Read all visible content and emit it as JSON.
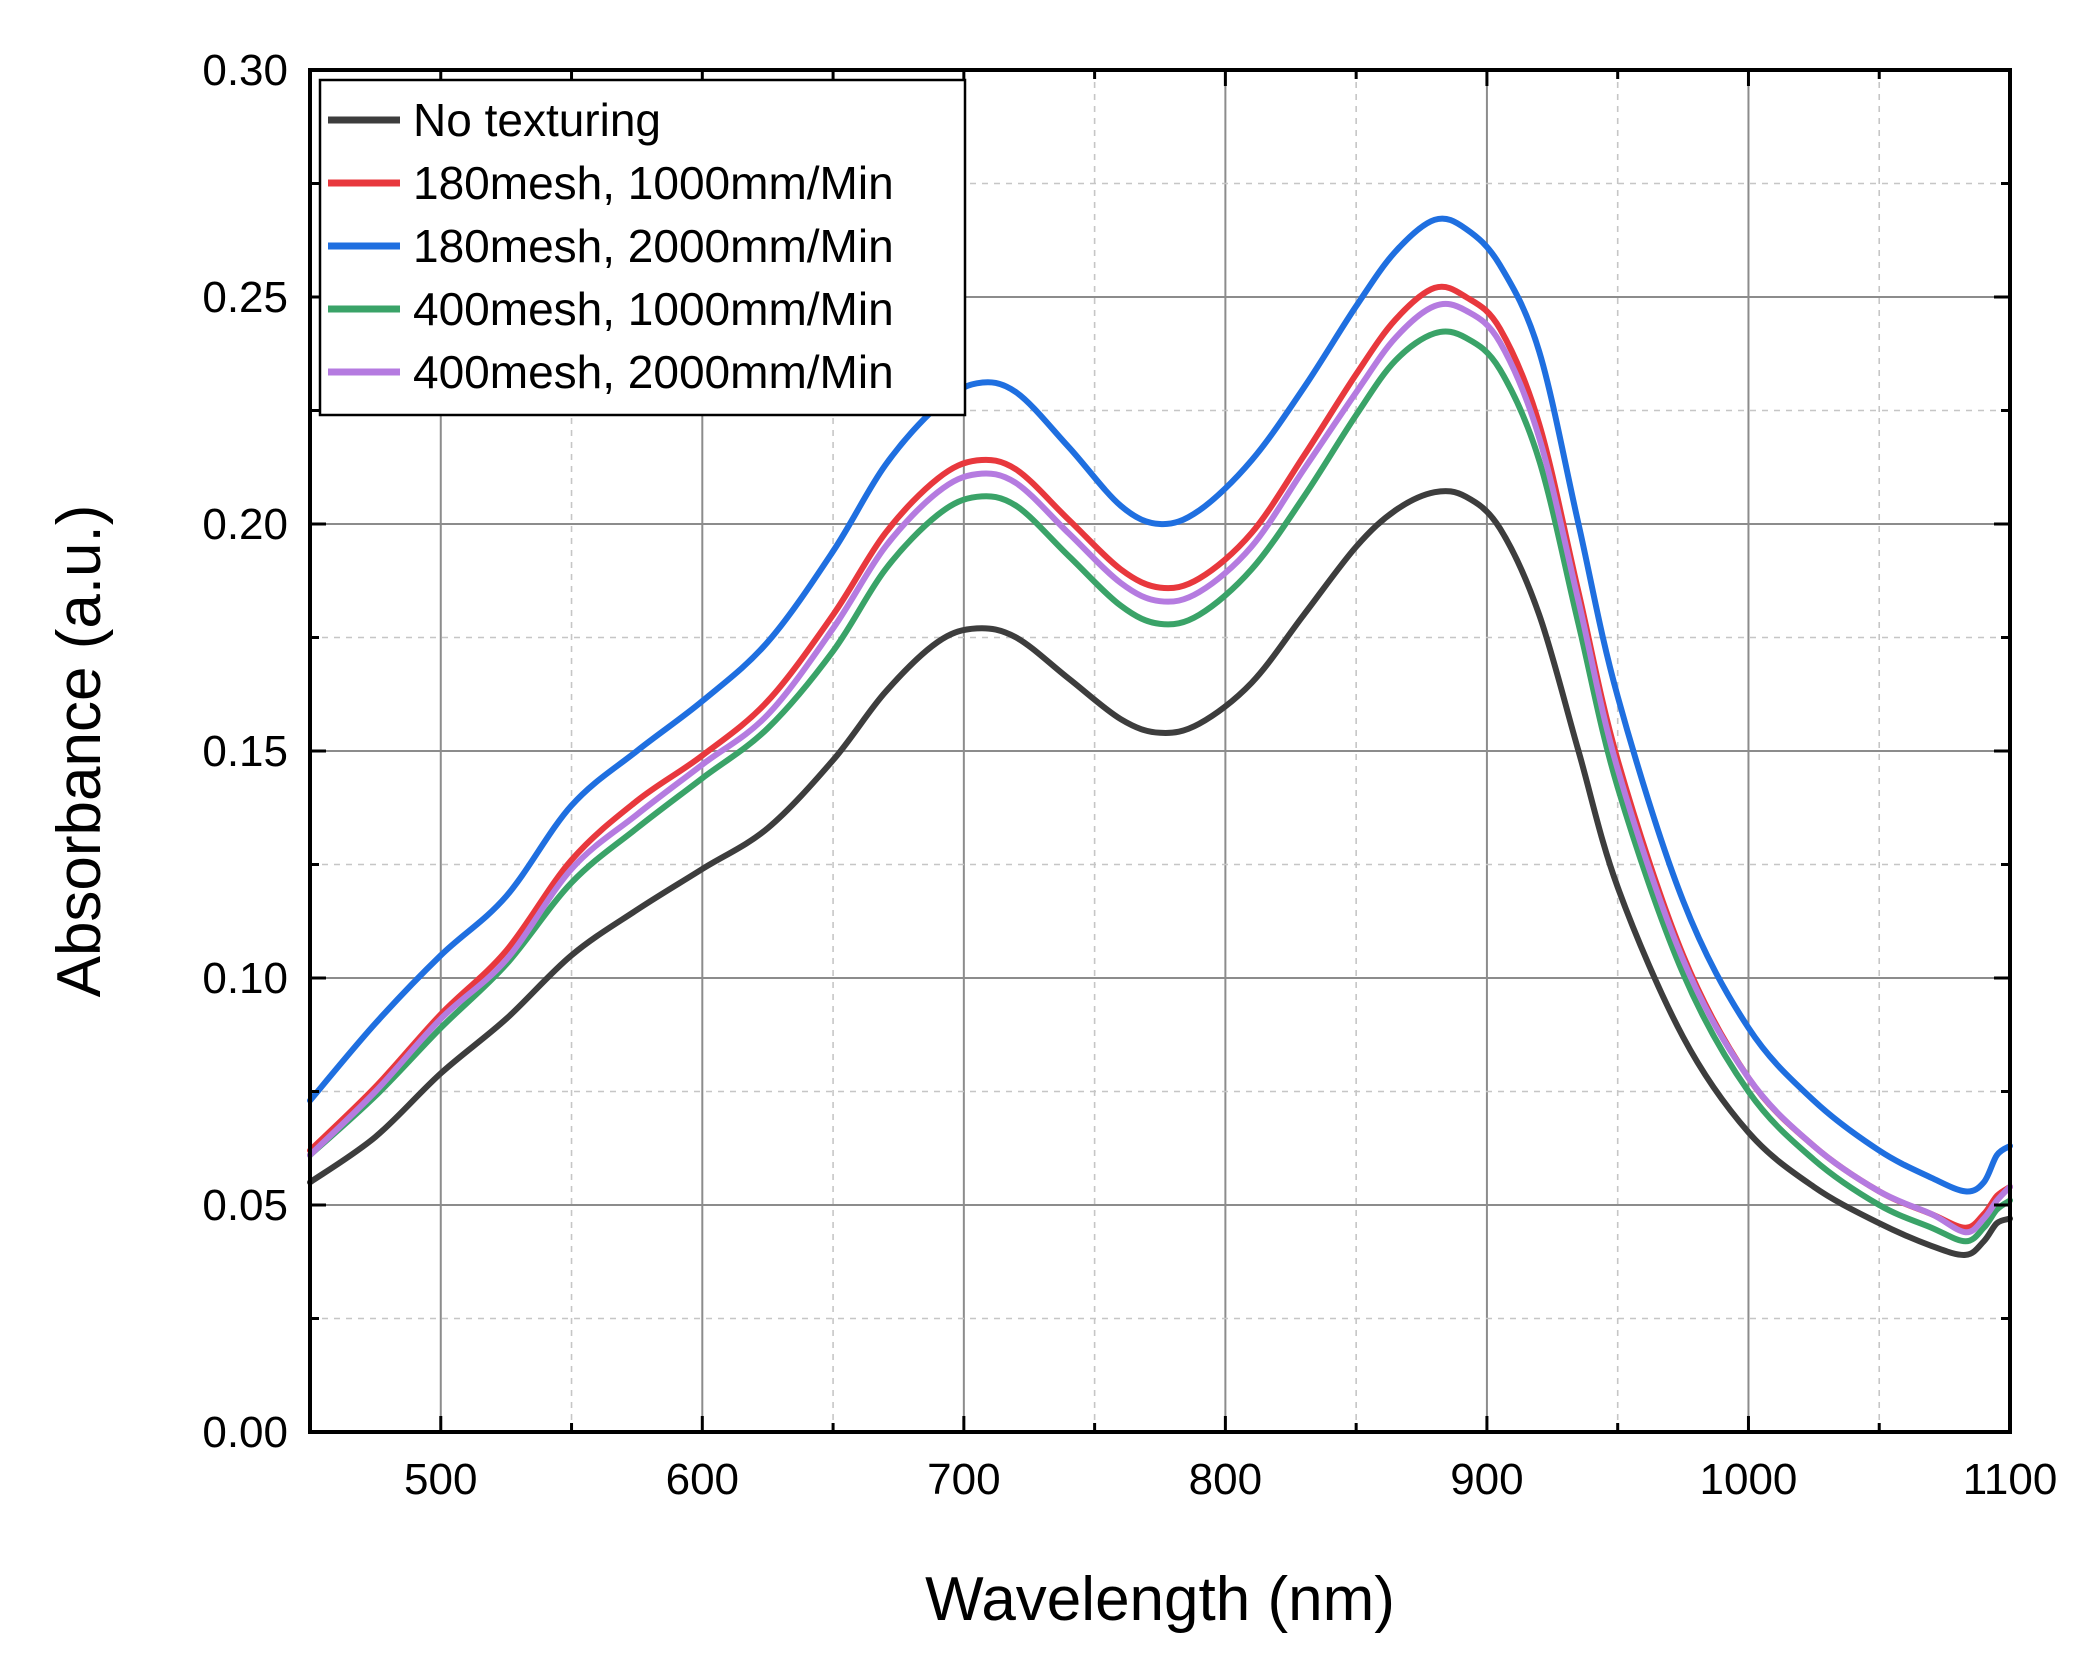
{
  "chart_data": {
    "type": "line",
    "title": "",
    "xlabel": "Wavelength (nm)",
    "ylabel": "Absorbance (a.u.)",
    "xlim": [
      450,
      1100
    ],
    "ylim": [
      0.0,
      0.3
    ],
    "x_ticks": [
      500,
      600,
      700,
      800,
      900,
      1000,
      1100
    ],
    "x_tick_labels": [
      "500",
      "600",
      "700",
      "800",
      "900",
      "1000",
      "1100"
    ],
    "y_ticks": [
      0.0,
      0.05,
      0.1,
      0.15,
      0.2,
      0.25,
      0.3
    ],
    "y_tick_labels": [
      "0.00",
      "0.05",
      "0.10",
      "0.15",
      "0.20",
      "0.25",
      "0.30"
    ],
    "grid": true,
    "legend_position": "top-left",
    "series": [
      {
        "name": "No texturing",
        "color": "#3d3d3d",
        "points": [
          [
            450,
            0.055
          ],
          [
            475,
            0.065
          ],
          [
            500,
            0.079
          ],
          [
            525,
            0.091
          ],
          [
            550,
            0.105
          ],
          [
            575,
            0.115
          ],
          [
            600,
            0.124
          ],
          [
            625,
            0.133
          ],
          [
            650,
            0.148
          ],
          [
            670,
            0.163
          ],
          [
            690,
            0.174
          ],
          [
            705,
            0.177
          ],
          [
            720,
            0.175
          ],
          [
            740,
            0.166
          ],
          [
            760,
            0.157
          ],
          [
            775,
            0.154
          ],
          [
            790,
            0.156
          ],
          [
            810,
            0.165
          ],
          [
            830,
            0.18
          ],
          [
            850,
            0.195
          ],
          [
            865,
            0.203
          ],
          [
            880,
            0.207
          ],
          [
            892,
            0.206
          ],
          [
            905,
            0.199
          ],
          [
            920,
            0.18
          ],
          [
            935,
            0.15
          ],
          [
            950,
            0.12
          ],
          [
            975,
            0.087
          ],
          [
            1000,
            0.066
          ],
          [
            1025,
            0.054
          ],
          [
            1050,
            0.046
          ],
          [
            1070,
            0.041
          ],
          [
            1083,
            0.039
          ],
          [
            1090,
            0.042
          ],
          [
            1095,
            0.046
          ],
          [
            1100,
            0.047
          ]
        ]
      },
      {
        "name": "180mesh, 1000mm/Min",
        "color": "#e8383d",
        "points": [
          [
            450,
            0.062
          ],
          [
            475,
            0.076
          ],
          [
            500,
            0.092
          ],
          [
            525,
            0.106
          ],
          [
            550,
            0.126
          ],
          [
            575,
            0.139
          ],
          [
            600,
            0.149
          ],
          [
            625,
            0.161
          ],
          [
            650,
            0.18
          ],
          [
            670,
            0.198
          ],
          [
            690,
            0.21
          ],
          [
            705,
            0.214
          ],
          [
            720,
            0.212
          ],
          [
            740,
            0.201
          ],
          [
            760,
            0.19
          ],
          [
            775,
            0.186
          ],
          [
            790,
            0.188
          ],
          [
            810,
            0.198
          ],
          [
            830,
            0.215
          ],
          [
            850,
            0.233
          ],
          [
            865,
            0.245
          ],
          [
            880,
            0.252
          ],
          [
            892,
            0.25
          ],
          [
            905,
            0.243
          ],
          [
            920,
            0.222
          ],
          [
            935,
            0.185
          ],
          [
            950,
            0.148
          ],
          [
            975,
            0.105
          ],
          [
            1000,
            0.078
          ],
          [
            1025,
            0.063
          ],
          [
            1050,
            0.053
          ],
          [
            1070,
            0.048
          ],
          [
            1083,
            0.045
          ],
          [
            1090,
            0.048
          ],
          [
            1095,
            0.052
          ],
          [
            1100,
            0.054
          ]
        ]
      },
      {
        "name": "180mesh, 2000mm/Min",
        "color": "#1f6fe0",
        "points": [
          [
            450,
            0.073
          ],
          [
            475,
            0.09
          ],
          [
            500,
            0.105
          ],
          [
            525,
            0.118
          ],
          [
            550,
            0.138
          ],
          [
            575,
            0.15
          ],
          [
            600,
            0.161
          ],
          [
            625,
            0.174
          ],
          [
            650,
            0.194
          ],
          [
            670,
            0.213
          ],
          [
            690,
            0.226
          ],
          [
            705,
            0.231
          ],
          [
            720,
            0.229
          ],
          [
            740,
            0.217
          ],
          [
            760,
            0.204
          ],
          [
            775,
            0.2
          ],
          [
            790,
            0.203
          ],
          [
            810,
            0.214
          ],
          [
            830,
            0.23
          ],
          [
            850,
            0.248
          ],
          [
            865,
            0.26
          ],
          [
            880,
            0.267
          ],
          [
            892,
            0.265
          ],
          [
            905,
            0.257
          ],
          [
            920,
            0.238
          ],
          [
            935,
            0.2
          ],
          [
            950,
            0.162
          ],
          [
            975,
            0.117
          ],
          [
            1000,
            0.089
          ],
          [
            1025,
            0.073
          ],
          [
            1050,
            0.062
          ],
          [
            1070,
            0.056
          ],
          [
            1083,
            0.053
          ],
          [
            1090,
            0.055
          ],
          [
            1095,
            0.061
          ],
          [
            1100,
            0.063
          ]
        ]
      },
      {
        "name": "400mesh, 1000mm/Min",
        "color": "#3aa368",
        "points": [
          [
            450,
            0.061
          ],
          [
            475,
            0.074
          ],
          [
            500,
            0.089
          ],
          [
            525,
            0.103
          ],
          [
            550,
            0.121
          ],
          [
            575,
            0.133
          ],
          [
            600,
            0.144
          ],
          [
            625,
            0.155
          ],
          [
            650,
            0.172
          ],
          [
            670,
            0.19
          ],
          [
            690,
            0.202
          ],
          [
            705,
            0.206
          ],
          [
            720,
            0.204
          ],
          [
            740,
            0.193
          ],
          [
            760,
            0.182
          ],
          [
            775,
            0.178
          ],
          [
            790,
            0.18
          ],
          [
            810,
            0.19
          ],
          [
            830,
            0.206
          ],
          [
            850,
            0.224
          ],
          [
            865,
            0.236
          ],
          [
            880,
            0.242
          ],
          [
            892,
            0.241
          ],
          [
            905,
            0.234
          ],
          [
            920,
            0.214
          ],
          [
            935,
            0.178
          ],
          [
            950,
            0.142
          ],
          [
            975,
            0.101
          ],
          [
            1000,
            0.075
          ],
          [
            1025,
            0.06
          ],
          [
            1050,
            0.05
          ],
          [
            1070,
            0.045
          ],
          [
            1083,
            0.042
          ],
          [
            1090,
            0.045
          ],
          [
            1095,
            0.049
          ],
          [
            1100,
            0.051
          ]
        ]
      },
      {
        "name": "400mesh, 2000mm/Min",
        "color": "#b57be0",
        "points": [
          [
            450,
            0.061
          ],
          [
            475,
            0.075
          ],
          [
            500,
            0.091
          ],
          [
            525,
            0.104
          ],
          [
            550,
            0.124
          ],
          [
            575,
            0.136
          ],
          [
            600,
            0.147
          ],
          [
            625,
            0.158
          ],
          [
            650,
            0.177
          ],
          [
            670,
            0.195
          ],
          [
            690,
            0.207
          ],
          [
            705,
            0.211
          ],
          [
            720,
            0.209
          ],
          [
            740,
            0.198
          ],
          [
            760,
            0.187
          ],
          [
            775,
            0.183
          ],
          [
            790,
            0.185
          ],
          [
            810,
            0.195
          ],
          [
            830,
            0.212
          ],
          [
            850,
            0.229
          ],
          [
            865,
            0.241
          ],
          [
            880,
            0.248
          ],
          [
            892,
            0.247
          ],
          [
            905,
            0.24
          ],
          [
            920,
            0.219
          ],
          [
            935,
            0.183
          ],
          [
            950,
            0.146
          ],
          [
            975,
            0.104
          ],
          [
            1000,
            0.078
          ],
          [
            1025,
            0.063
          ],
          [
            1050,
            0.053
          ],
          [
            1070,
            0.048
          ],
          [
            1083,
            0.044
          ],
          [
            1090,
            0.047
          ],
          [
            1095,
            0.051
          ],
          [
            1100,
            0.054
          ]
        ]
      }
    ]
  }
}
